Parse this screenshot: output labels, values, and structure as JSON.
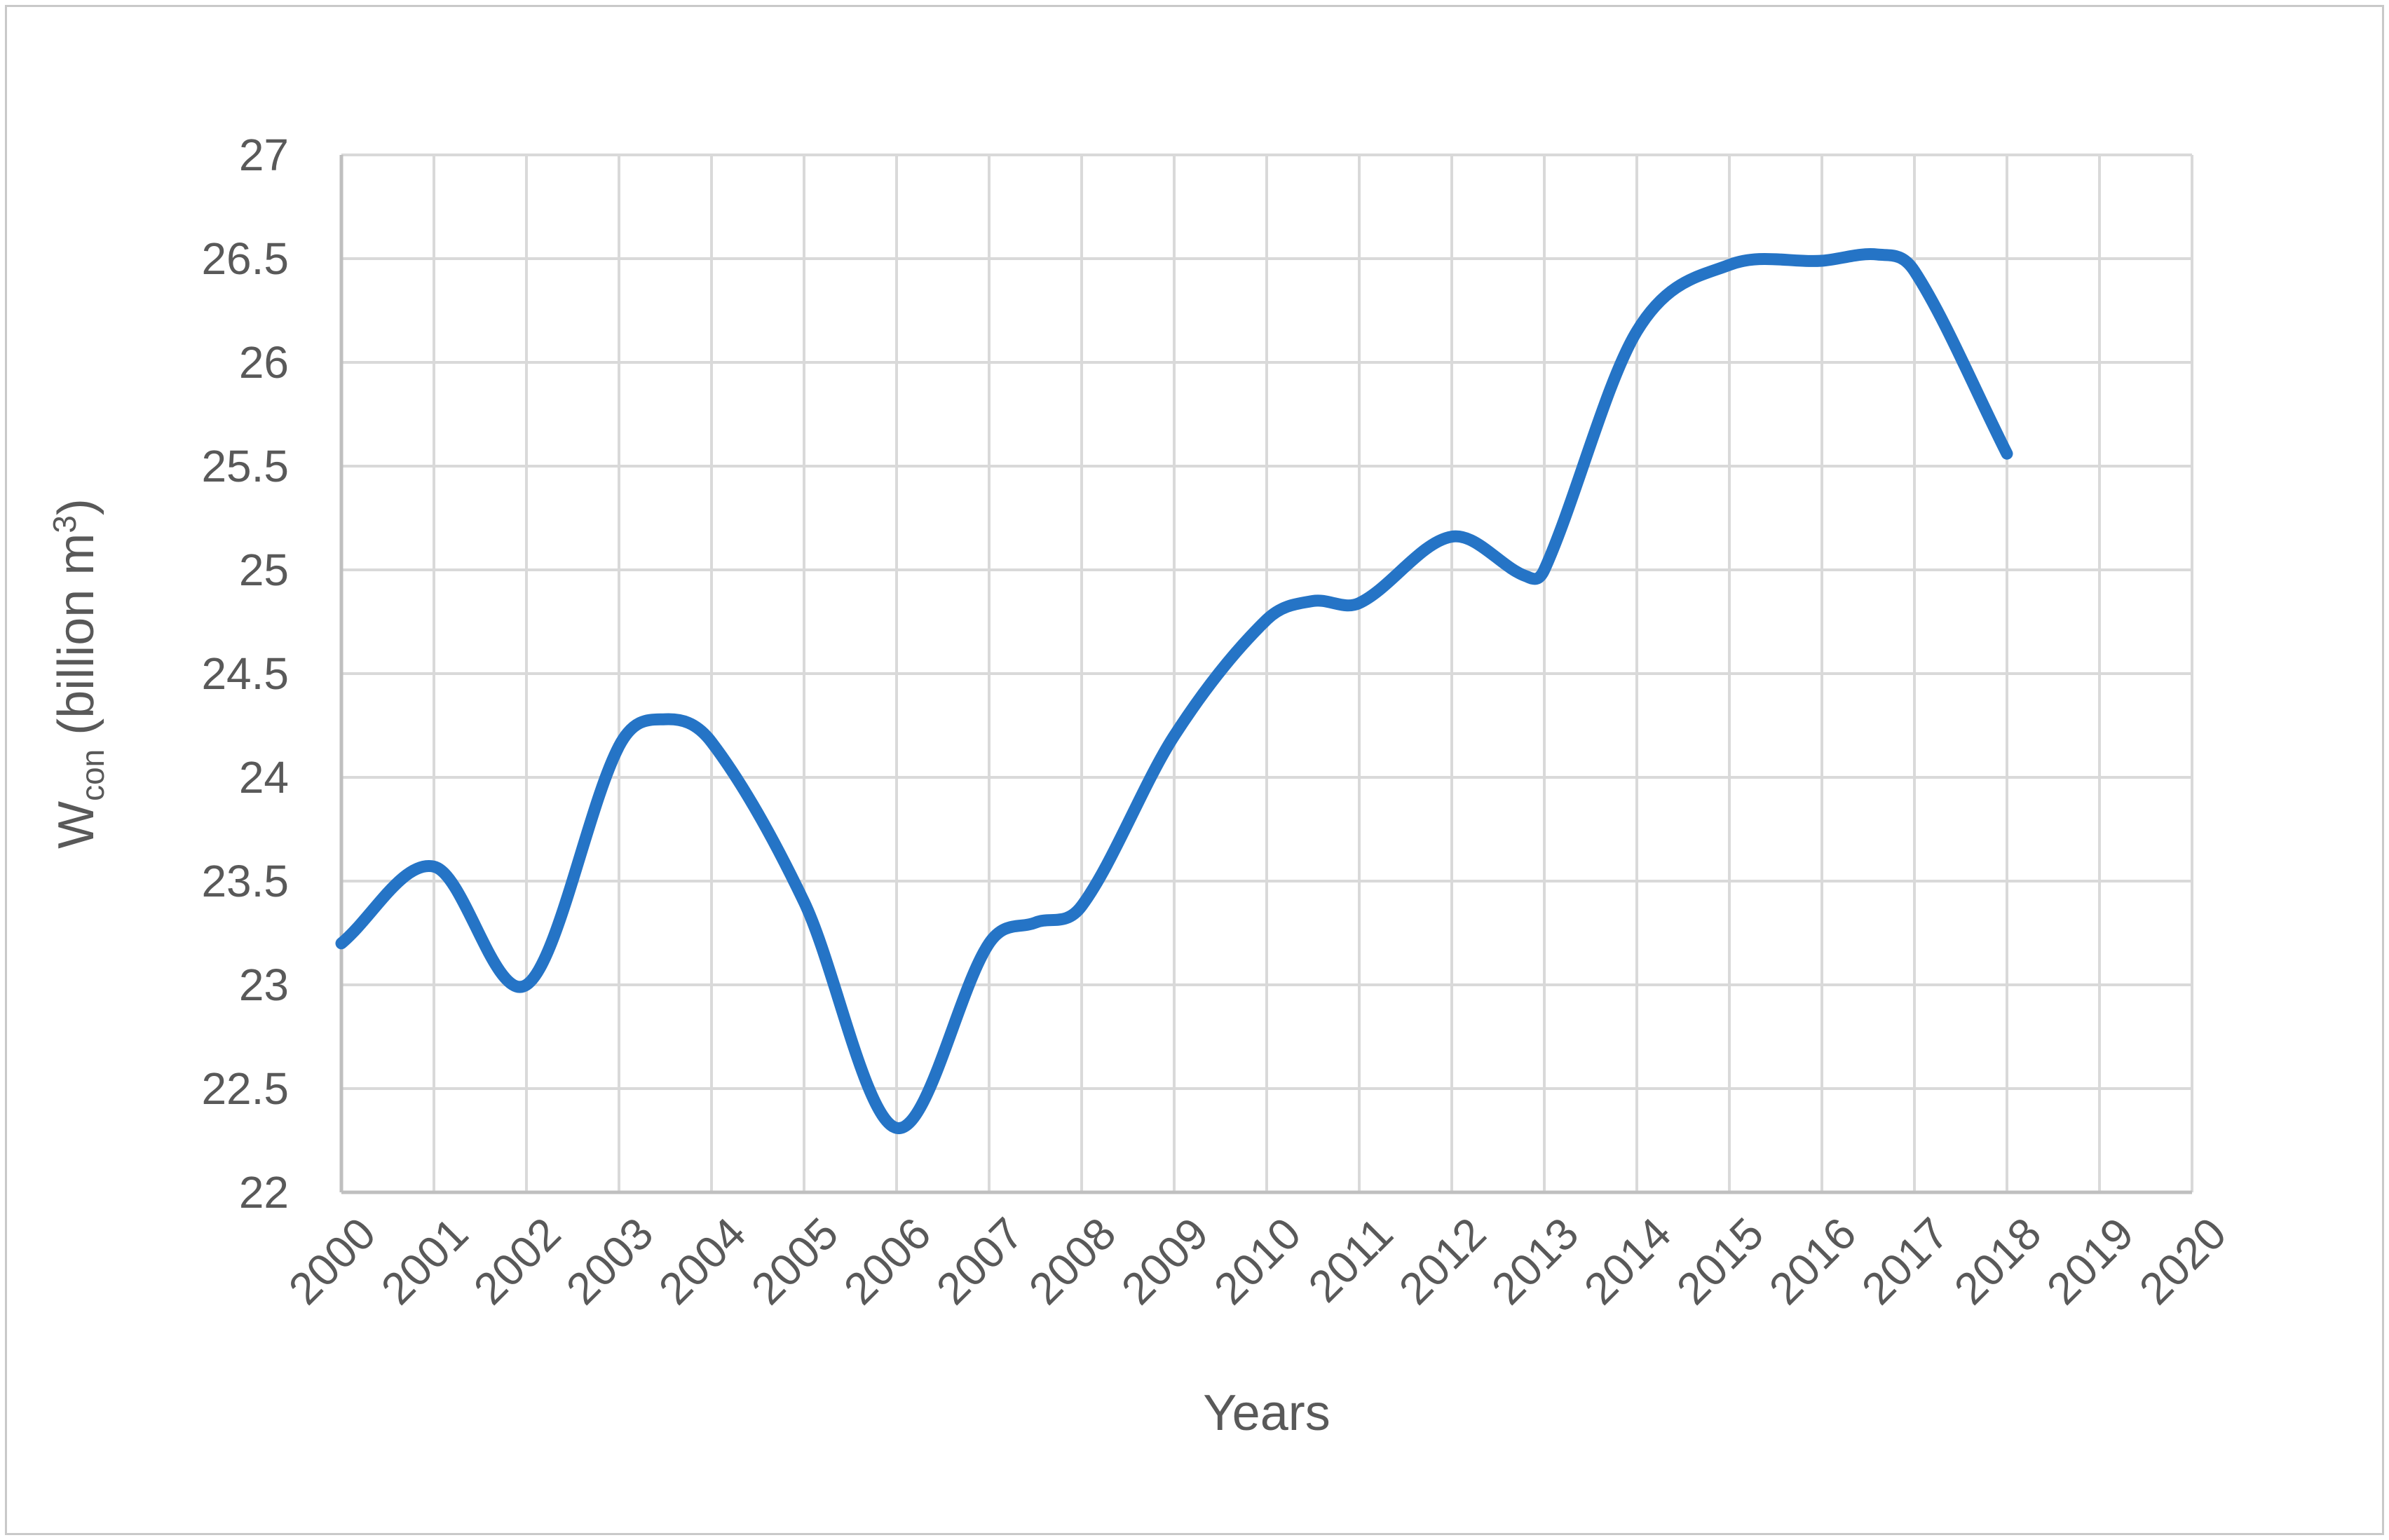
{
  "figure": {
    "background": "#ffffff",
    "border_color": "#c9c9c9"
  },
  "chart_data": {
    "type": "line",
    "title": "",
    "xlabel": "Years",
    "ylabel": "W_con (billion m³)",
    "ylabel_parts": {
      "main": "W",
      "sub": "con",
      "rest": " (billion m",
      "sup": "3",
      "close": ")"
    },
    "grid": true,
    "legend": false,
    "line_color": "#2574c6",
    "gridline_color": "#d9d9d9",
    "axis_line_color": "#bfbfbf",
    "tick_text_color": "#595959",
    "x_axis": {
      "min": 2000,
      "max": 2020,
      "tick_step": 1,
      "ticks": [
        "2000",
        "2001",
        "2002",
        "2003",
        "2004",
        "2005",
        "2006",
        "2007",
        "2008",
        "2009",
        "2010",
        "2011",
        "2012",
        "2013",
        "2014",
        "2015",
        "2016",
        "2017",
        "2018",
        "2019",
        "2020"
      ]
    },
    "y_axis": {
      "min": 22,
      "max": 27,
      "tick_step": 0.5,
      "ticks": [
        "27",
        "26.5",
        "26",
        "25.5",
        "25",
        "24.5",
        "24",
        "23.5",
        "23",
        "22.5",
        "22"
      ]
    },
    "categories": [
      2000,
      2001,
      2002,
      2003,
      2004,
      2005,
      2006,
      2007,
      2008,
      2009,
      2010,
      2011,
      2012,
      2013,
      2014,
      2015,
      2016,
      2017,
      2018
    ],
    "series": [
      {
        "name": "Wcon",
        "values": [
          23.2,
          23.57,
          23.0,
          24.15,
          24.17,
          23.4,
          22.31,
          23.2,
          23.38,
          24.2,
          24.76,
          24.84,
          25.16,
          25.0,
          26.15,
          26.47,
          26.49,
          26.44,
          25.56
        ]
      }
    ],
    "curve_waypoints": [
      [
        2000,
        23.2
      ],
      [
        2001,
        23.57
      ],
      [
        2002,
        23.0
      ],
      [
        2003,
        24.15
      ],
      [
        2003.5,
        24.28
      ],
      [
        2004,
        24.17
      ],
      [
        2005,
        23.4
      ],
      [
        2006,
        22.31
      ],
      [
        2007,
        23.2
      ],
      [
        2007.5,
        23.3
      ],
      [
        2008,
        23.38
      ],
      [
        2009,
        24.2
      ],
      [
        2010,
        24.76
      ],
      [
        2010.5,
        24.85
      ],
      [
        2011,
        24.84
      ],
      [
        2012,
        25.16
      ],
      [
        2012.8,
        24.97
      ],
      [
        2013,
        25.0
      ],
      [
        2014,
        26.15
      ],
      [
        2015,
        26.47
      ],
      [
        2016,
        26.49
      ],
      [
        2016.6,
        26.52
      ],
      [
        2017,
        26.44
      ],
      [
        2018,
        25.56
      ]
    ]
  }
}
